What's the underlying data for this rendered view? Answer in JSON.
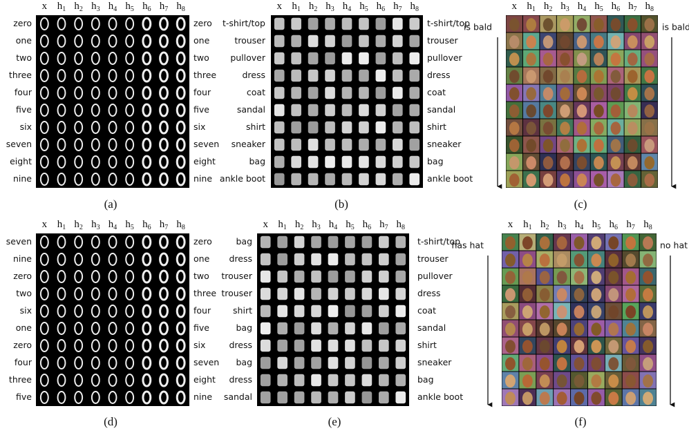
{
  "panels": [
    {
      "caption": "(a)",
      "columns": [
        {
          "main": "x"
        },
        {
          "main": "h",
          "sub": "1"
        },
        {
          "main": "h",
          "sub": "2"
        },
        {
          "main": "h",
          "sub": "3"
        },
        {
          "main": "h",
          "sub": "4"
        },
        {
          "main": "h",
          "sub": "5"
        },
        {
          "main": "h",
          "sub": "6"
        },
        {
          "main": "h",
          "sub": "7"
        },
        {
          "main": "h",
          "sub": "8"
        }
      ],
      "left_labels": [
        "zero",
        "one",
        "two",
        "three",
        "four",
        "five",
        "six",
        "seven",
        "eight",
        "nine"
      ],
      "right_labels": [
        "zero",
        "one",
        "two",
        "three",
        "four",
        "five",
        "six",
        "seven",
        "eight",
        "nine"
      ]
    },
    {
      "caption": "(b)",
      "columns": [
        {
          "main": "x"
        },
        {
          "main": "h",
          "sub": "1"
        },
        {
          "main": "h",
          "sub": "2"
        },
        {
          "main": "h",
          "sub": "3"
        },
        {
          "main": "h",
          "sub": "4"
        },
        {
          "main": "h",
          "sub": "5"
        },
        {
          "main": "h",
          "sub": "6"
        },
        {
          "main": "h",
          "sub": "7"
        },
        {
          "main": "h",
          "sub": "8"
        }
      ],
      "left_labels": [
        "t-shirt/top",
        "trouser",
        "pullover",
        "dress",
        "coat",
        "sandal",
        "shirt",
        "sneaker",
        "bag",
        "ankle boot"
      ],
      "right_labels": [
        "t-shirt/top",
        "trouser",
        "pullover",
        "dress",
        "coat",
        "sandal",
        "shirt",
        "sneaker",
        "bag",
        "ankle boot"
      ]
    },
    {
      "caption": "(c)",
      "columns": [
        {
          "main": "x"
        },
        {
          "main": "h",
          "sub": "1"
        },
        {
          "main": "h",
          "sub": "2"
        },
        {
          "main": "h",
          "sub": "3"
        },
        {
          "main": "h",
          "sub": "4"
        },
        {
          "main": "h",
          "sub": "5"
        },
        {
          "main": "h",
          "sub": "6"
        },
        {
          "main": "h",
          "sub": "7"
        },
        {
          "main": "h",
          "sub": "8"
        }
      ],
      "left_label": "is bald",
      "right_label": "is bald"
    },
    {
      "caption": "(d)",
      "columns": [
        {
          "main": "x"
        },
        {
          "main": "h",
          "sub": "1"
        },
        {
          "main": "h",
          "sub": "2"
        },
        {
          "main": "h",
          "sub": "3"
        },
        {
          "main": "h",
          "sub": "4"
        },
        {
          "main": "h",
          "sub": "5"
        },
        {
          "main": "h",
          "sub": "6"
        },
        {
          "main": "h",
          "sub": "7"
        },
        {
          "main": "h",
          "sub": "8"
        }
      ],
      "left_labels": [
        "seven",
        "nine",
        "zero",
        "two",
        "six",
        "one",
        "zero",
        "four",
        "three",
        "five"
      ],
      "right_labels": [
        "zero",
        "one",
        "two",
        "three",
        "four",
        "five",
        "six",
        "seven",
        "eight",
        "nine"
      ]
    },
    {
      "caption": "(e)",
      "columns": [
        {
          "main": "x"
        },
        {
          "main": "h",
          "sub": "1"
        },
        {
          "main": "h",
          "sub": "2"
        },
        {
          "main": "h",
          "sub": "3"
        },
        {
          "main": "h",
          "sub": "4"
        },
        {
          "main": "h",
          "sub": "5"
        },
        {
          "main": "h",
          "sub": "6"
        },
        {
          "main": "h",
          "sub": "7"
        },
        {
          "main": "h",
          "sub": "8"
        }
      ],
      "left_labels": [
        "bag",
        "dress",
        "trouser",
        "trouser",
        "shirt",
        "bag",
        "dress",
        "bag",
        "dress",
        "sandal"
      ],
      "right_labels": [
        "t-shirt/top",
        "trouser",
        "pullover",
        "dress",
        "coat",
        "sandal",
        "shirt",
        "sneaker",
        "bag",
        "ankle boot"
      ]
    },
    {
      "caption": "(f)",
      "columns": [
        {
          "main": "x"
        },
        {
          "main": "h",
          "sub": "1"
        },
        {
          "main": "h",
          "sub": "2"
        },
        {
          "main": "h",
          "sub": "3"
        },
        {
          "main": "h",
          "sub": "4"
        },
        {
          "main": "h",
          "sub": "5"
        },
        {
          "main": "h",
          "sub": "6"
        },
        {
          "main": "h",
          "sub": "7"
        },
        {
          "main": "h",
          "sub": "8"
        }
      ],
      "left_label": "has hat",
      "right_label": "no hat"
    }
  ]
}
